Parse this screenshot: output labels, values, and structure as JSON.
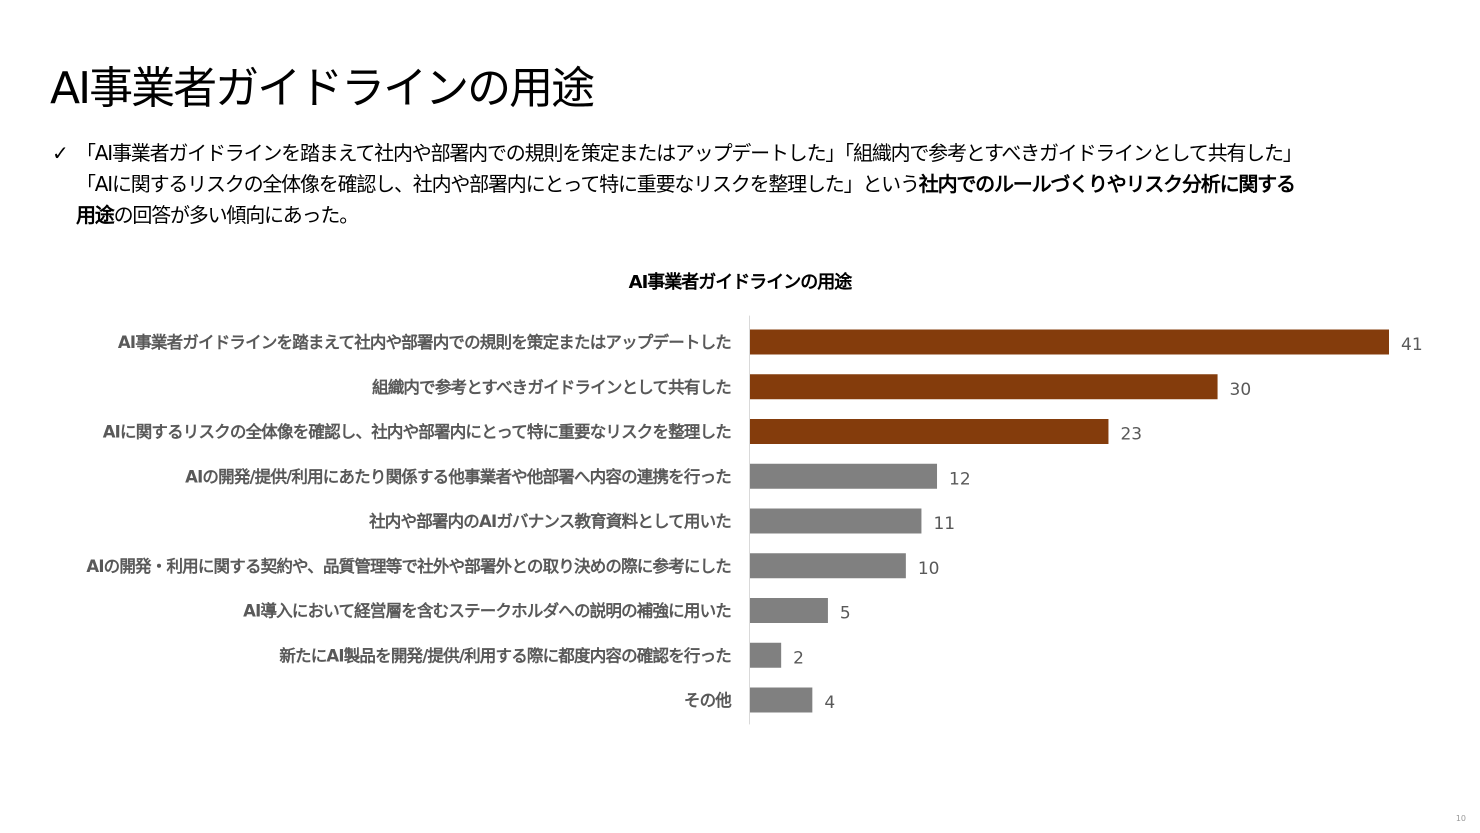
{
  "slide": {
    "title": "AI事業者ガイドラインの用途",
    "check_icon": "check-icon",
    "desc_line1": "「AI事業者ガイドラインを踏まえて社内や部署内での規則を策定またはアップデートした」「組織内で参考とすべきガイドラインとして共有した」",
    "desc_line2_plain": "「AIに関するリスクの全体像を確認し、社内や部署内にとって特に重要なリスクを整理した」という",
    "desc_line2_bold": "社内でのルールづくりやリスク分析に関する",
    "desc_line3_bold": "用途",
    "desc_line3_plain": "の回答が多い傾向にあった。",
    "page_number": "10"
  },
  "chart_data": {
    "type": "bar",
    "orientation": "horizontal",
    "title": "AI事業者ガイドラインの用途",
    "categories": [
      "AI事業者ガイドラインを踏まえて社内や部署内での規則を策定またはアップデートした",
      "組織内で参考とすべきガイドラインとして共有した",
      "AIに関するリスクの全体像を確認し、社内や部署内にとって特に重要なリスクを整理した",
      "AIの開発/提供/利用にあたり関係する他事業者や他部署へ内容の連携を行った",
      "社内や部署内のAIガバナンス教育資料として用いた",
      "AIの開発・利用に関する契約や、品質管理等で社外や部署外との取り決めの際に参考にした",
      "AI導入において経営層を含むステークホルダへの説明の補強に用いた",
      "新たにAI製品を開発/提供/利用する際に都度内容の確認を行った",
      "その他"
    ],
    "values": [
      41,
      30,
      23,
      12,
      11,
      10,
      5,
      2,
      4
    ],
    "highlighted": [
      true,
      true,
      true,
      false,
      false,
      false,
      false,
      false,
      false
    ],
    "colors": {
      "highlight": "#843C0C",
      "default": "#808080"
    },
    "xlim": [
      0,
      41
    ],
    "grid": false,
    "data_labels": true
  }
}
